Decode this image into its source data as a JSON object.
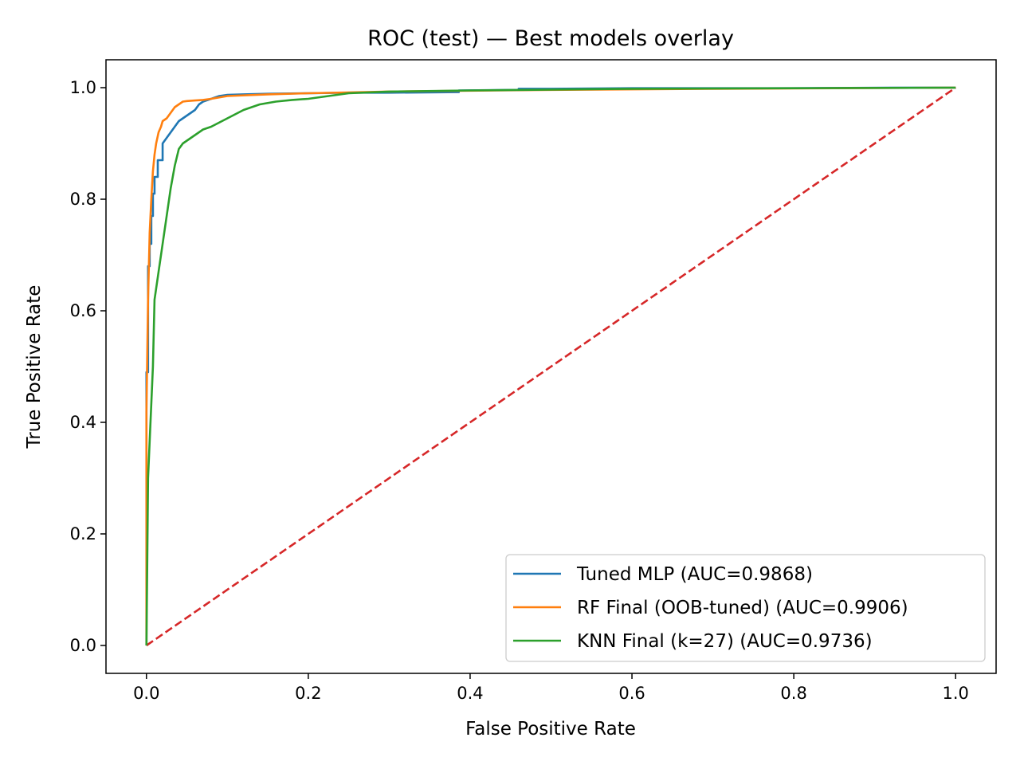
{
  "chart_data": {
    "type": "line",
    "title": "ROC (test) — Best models overlay",
    "xlabel": "False Positive Rate",
    "ylabel": "True Positive Rate",
    "xlim": [
      -0.05,
      1.05
    ],
    "ylim": [
      -0.05,
      1.05
    ],
    "xticks": [
      0.0,
      0.2,
      0.4,
      0.6,
      0.8,
      1.0
    ],
    "xtick_labels": [
      "0.0",
      "0.2",
      "0.4",
      "0.6",
      "0.8",
      "1.0"
    ],
    "yticks": [
      0.0,
      0.2,
      0.4,
      0.6,
      0.8,
      1.0
    ],
    "ytick_labels": [
      "0.0",
      "0.2",
      "0.4",
      "0.6",
      "0.8",
      "1.0"
    ],
    "grid": false,
    "legend_position": "lower-right",
    "series": [
      {
        "name": "Tuned MLP (AUC=0.9868)",
        "color": "#1f77b4",
        "style": "solid",
        "x": [
          0.0,
          0.0,
          0.002,
          0.002,
          0.004,
          0.004,
          0.006,
          0.006,
          0.008,
          0.008,
          0.01,
          0.01,
          0.014,
          0.014,
          0.02,
          0.02,
          0.025,
          0.03,
          0.035,
          0.04,
          0.045,
          0.05,
          0.055,
          0.06,
          0.065,
          0.07,
          0.08,
          0.09,
          0.1,
          0.12,
          0.15,
          0.2,
          0.25,
          0.3,
          0.386,
          0.386,
          0.46,
          0.46,
          0.5,
          0.6,
          0.8,
          0.92,
          1.0
        ],
        "y": [
          0.0,
          0.49,
          0.49,
          0.68,
          0.68,
          0.72,
          0.72,
          0.77,
          0.77,
          0.81,
          0.81,
          0.84,
          0.84,
          0.87,
          0.87,
          0.9,
          0.91,
          0.92,
          0.93,
          0.94,
          0.945,
          0.95,
          0.955,
          0.96,
          0.97,
          0.975,
          0.98,
          0.985,
          0.987,
          0.988,
          0.989,
          0.99,
          0.991,
          0.991,
          0.992,
          0.995,
          0.996,
          0.998,
          0.998,
          0.999,
          0.999,
          1.0,
          1.0
        ]
      },
      {
        "name": "RF Final (OOB-tuned) (AUC=0.9906)",
        "color": "#ff7f0e",
        "style": "solid",
        "x": [
          0.0,
          0.0,
          0.002,
          0.004,
          0.006,
          0.008,
          0.01,
          0.012,
          0.015,
          0.018,
          0.02,
          0.025,
          0.03,
          0.035,
          0.04,
          0.045,
          0.05,
          0.06,
          0.07,
          0.08,
          0.1,
          0.15,
          0.2,
          0.3,
          0.5,
          0.7,
          0.85,
          1.0
        ],
        "y": [
          0.0,
          0.42,
          0.62,
          0.74,
          0.8,
          0.85,
          0.88,
          0.9,
          0.92,
          0.93,
          0.94,
          0.945,
          0.955,
          0.965,
          0.97,
          0.975,
          0.976,
          0.977,
          0.978,
          0.98,
          0.985,
          0.988,
          0.99,
          0.993,
          0.996,
          0.998,
          0.999,
          1.0
        ]
      },
      {
        "name": "KNN Final (k=27) (AUC=0.9736)",
        "color": "#2ca02c",
        "style": "solid",
        "x": [
          0.0,
          0.002,
          0.005,
          0.008,
          0.01,
          0.015,
          0.02,
          0.025,
          0.03,
          0.035,
          0.04,
          0.045,
          0.05,
          0.06,
          0.07,
          0.08,
          0.1,
          0.12,
          0.14,
          0.16,
          0.18,
          0.2,
          0.25,
          0.3,
          0.4,
          0.6,
          0.8,
          1.0
        ],
        "y": [
          0.0,
          0.3,
          0.4,
          0.5,
          0.62,
          0.67,
          0.72,
          0.77,
          0.82,
          0.86,
          0.89,
          0.9,
          0.905,
          0.915,
          0.925,
          0.93,
          0.945,
          0.96,
          0.97,
          0.975,
          0.978,
          0.98,
          0.99,
          0.993,
          0.995,
          0.998,
          0.999,
          1.0
        ]
      },
      {
        "name": "",
        "color": "#d62728",
        "style": "dashed",
        "x": [
          0.0,
          1.0
        ],
        "y": [
          0.0,
          1.0
        ]
      }
    ]
  }
}
